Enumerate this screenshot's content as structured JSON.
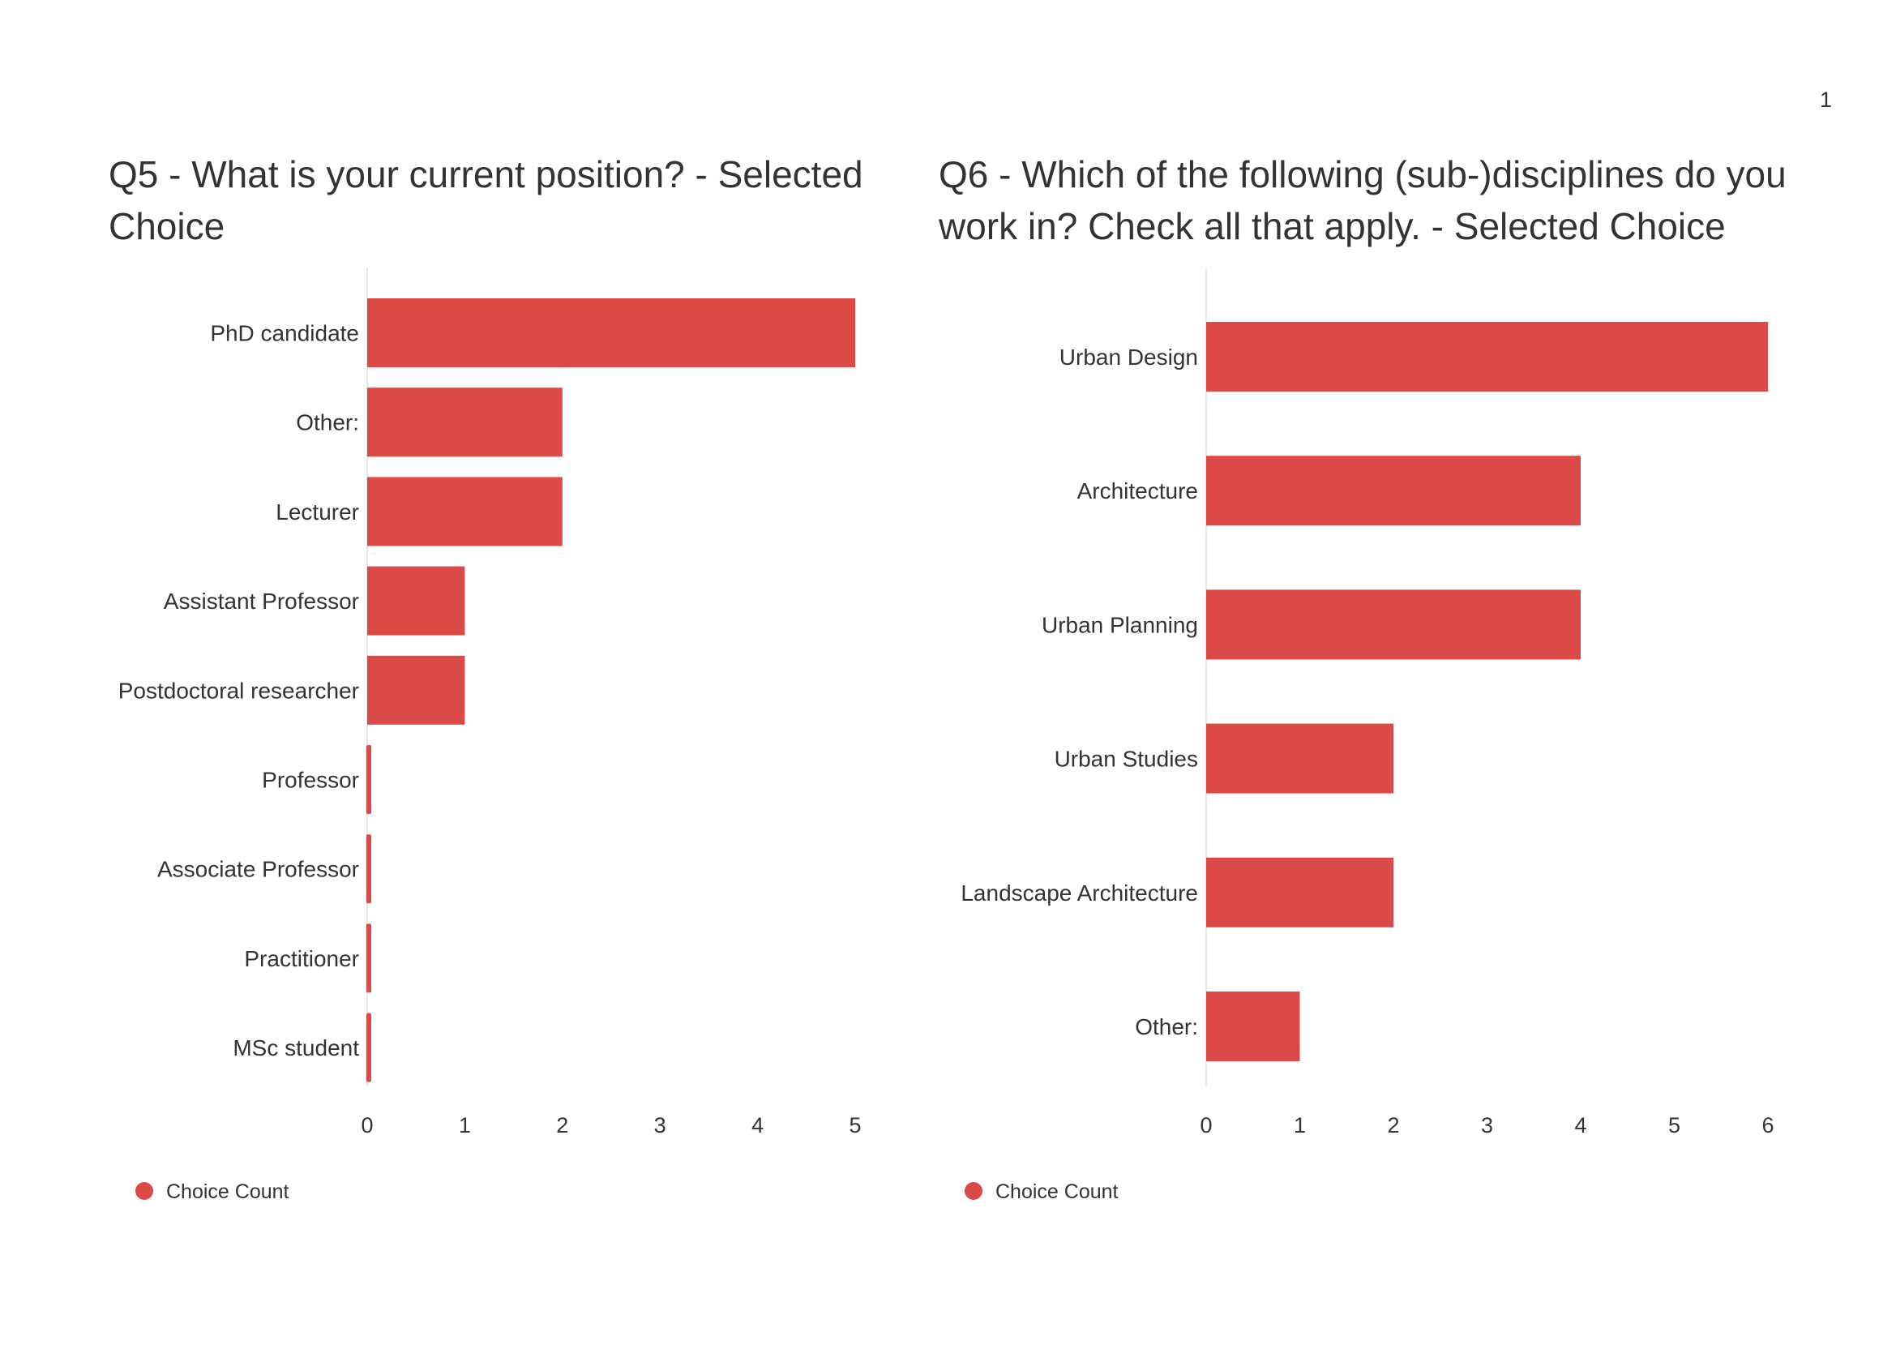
{
  "page": {
    "number": "1"
  },
  "colors": {
    "bar": "#DB4A47",
    "axis": "#E6E6E6",
    "text": "#333333"
  },
  "chart_data": [
    {
      "id": "q5",
      "type": "bar",
      "orientation": "horizontal",
      "title": "Q5 - What is your current position? - Selected Choice",
      "categories": [
        "PhD candidate",
        "Other:",
        "Lecturer",
        "Assistant Professor",
        "Postdoctoral researcher",
        "Professor",
        "Associate Professor",
        "Practitioner",
        "MSc student"
      ],
      "series": [
        {
          "name": "Choice Count",
          "values": [
            5,
            2,
            2,
            1,
            1,
            0,
            0,
            0,
            0
          ]
        }
      ],
      "xlim": [
        0,
        5
      ],
      "xticks": [
        "0",
        "1",
        "2",
        "3",
        "4",
        "5"
      ],
      "grid": false,
      "legend": "bottom-left"
    },
    {
      "id": "q6",
      "type": "bar",
      "orientation": "horizontal",
      "title": "Q6 - Which of the following (sub-)disciplines do you work in? Check all that apply. - Selected Choice",
      "categories": [
        "Urban Design",
        "Architecture",
        "Urban Planning",
        "Urban Studies",
        "Landscape Architecture",
        "Other:"
      ],
      "series": [
        {
          "name": "Choice Count",
          "values": [
            6,
            4,
            4,
            2,
            2,
            1
          ]
        }
      ],
      "xlim": [
        0,
        6
      ],
      "xticks": [
        "0",
        "1",
        "2",
        "3",
        "4",
        "5",
        "6"
      ],
      "grid": false,
      "legend": "bottom-left"
    }
  ]
}
